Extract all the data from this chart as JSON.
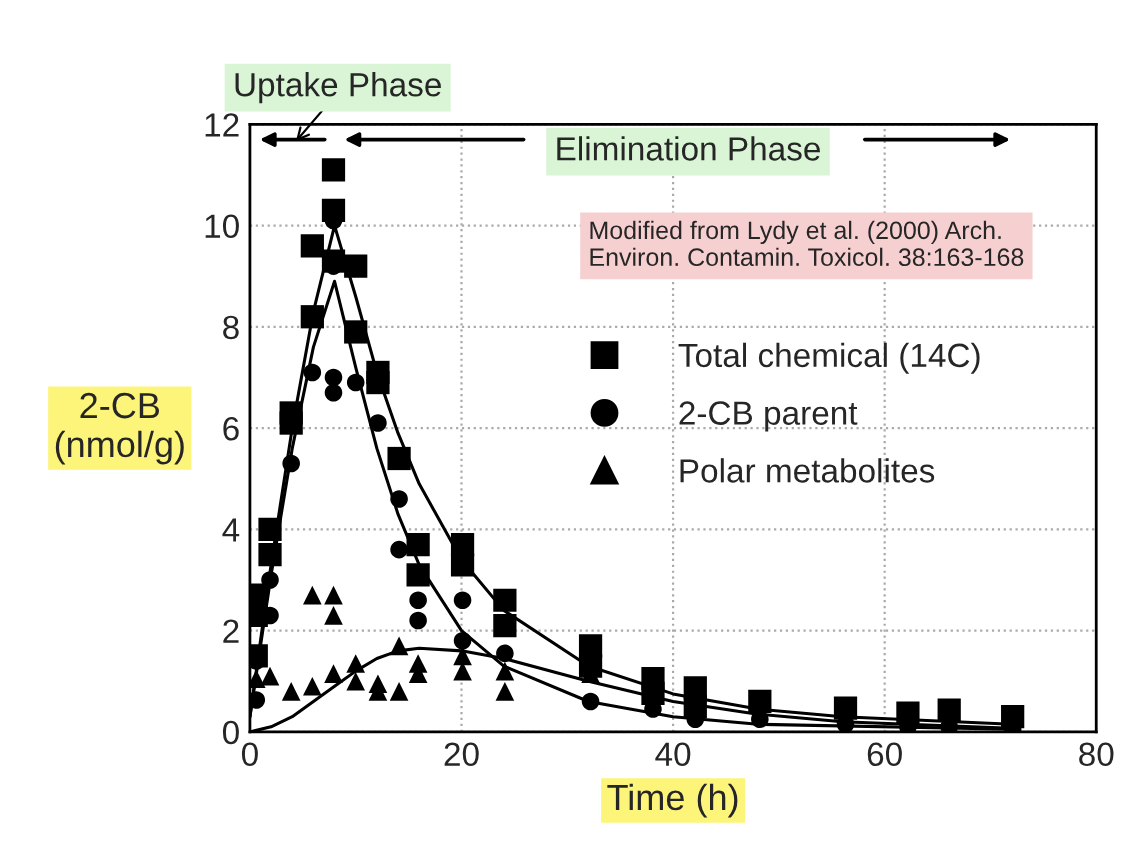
{
  "chart_data": {
    "type": "scatter",
    "xlabel": "Time (h)",
    "ylabel": "2-CB\n(nmol/g)",
    "xlim": [
      0,
      80
    ],
    "xticks": [
      0,
      20,
      40,
      60,
      80
    ],
    "ylim": [
      0,
      12
    ],
    "yticks": [
      0,
      2,
      4,
      6,
      8,
      10,
      12
    ],
    "grid": true,
    "legend": "right",
    "annotations": [
      "Uptake Phase",
      "Elimination Phase",
      "Modified from Lydy et al. (2000) Arch.\nEnviron. Contamin. Toxicol. 38:163-168"
    ],
    "series": [
      {
        "name": "Total chemical (14C)",
        "color": "#000000",
        "marker": "square",
        "x": [
          0.6,
          0.6,
          0.6,
          1.9,
          1.9,
          3.9,
          3.9,
          5.9,
          5.9,
          7.9,
          7.9,
          7.9,
          10,
          10,
          12.1,
          12.1,
          14.1,
          15.9,
          15.9,
          20.1,
          20.1,
          24.1,
          24.1,
          32.2,
          32.2,
          38.1,
          38.1,
          42.1,
          42.1,
          48.2,
          56.3,
          62.2,
          66.1,
          72.1
        ],
        "values": [
          2.7,
          2.3,
          1.5,
          4.0,
          3.5,
          6.3,
          6.1,
          8.2,
          9.6,
          11.1,
          10.3,
          9.3,
          9.2,
          7.9,
          7.1,
          6.9,
          5.4,
          3.7,
          3.1,
          3.7,
          3.3,
          2.6,
          2.1,
          1.7,
          1.3,
          1.05,
          0.76,
          0.87,
          0.5,
          0.6,
          0.47,
          0.37,
          0.43,
          0.3
        ]
      },
      {
        "name": "2-CB parent",
        "color": "#000000",
        "marker": "circle",
        "x": [
          0.6,
          0.6,
          1.9,
          1.9,
          3.9,
          5.9,
          7.9,
          7.9,
          7.9,
          7.9,
          10,
          12.1,
          14.1,
          14.1,
          15.9,
          15.9,
          20.1,
          20.1,
          24.1,
          32.2,
          38.1,
          42.1,
          48.2,
          56.3,
          62.2,
          66.1,
          72.1
        ],
        "values": [
          0.63,
          1.4,
          3.0,
          2.3,
          5.3,
          7.1,
          7.0,
          6.7,
          10.1,
          9.2,
          6.9,
          6.1,
          4.6,
          3.6,
          2.6,
          2.2,
          2.6,
          1.8,
          1.55,
          0.6,
          0.45,
          0.25,
          0.25,
          0.15,
          0.1,
          0.1,
          0.05
        ]
      },
      {
        "name": "Polar metabolites",
        "color": "#000000",
        "marker": "triangle",
        "x": [
          0.6,
          1.9,
          3.9,
          5.9,
          5.9,
          7.9,
          7.9,
          7.9,
          10,
          10,
          12.1,
          12.1,
          14.1,
          14.1,
          15.9,
          15.9,
          20.1,
          20.1,
          24.1,
          24.1,
          32.2
        ],
        "values": [
          1.05,
          1.1,
          0.8,
          0.9,
          2.7,
          2.7,
          2.3,
          1.15,
          1.35,
          1.0,
          0.95,
          0.8,
          0.8,
          1.7,
          1.35,
          1.15,
          1.2,
          1.5,
          1.2,
          0.8,
          1.15
        ]
      },
      {
        "type": "line",
        "color": "#000000",
        "x": [
          0,
          2,
          4,
          6,
          8,
          10,
          12,
          14,
          16,
          20,
          24,
          32,
          40,
          48,
          56,
          72
        ],
        "values": [
          0.3,
          3.3,
          6.0,
          8.3,
          10.0,
          8.6,
          7.1,
          5.9,
          4.9,
          3.4,
          2.4,
          1.3,
          0.75,
          0.45,
          0.3,
          0.15
        ]
      },
      {
        "type": "line",
        "color": "#000000",
        "x": [
          0,
          2,
          4,
          6,
          8,
          10,
          12,
          14,
          16,
          20,
          24,
          32,
          40,
          48,
          72
        ],
        "values": [
          0.3,
          3.1,
          5.6,
          7.6,
          8.9,
          7.2,
          5.6,
          4.3,
          3.3,
          2.0,
          1.3,
          0.6,
          0.3,
          0.15,
          0.05
        ]
      },
      {
        "type": "line",
        "color": "#000000",
        "x": [
          0,
          2,
          4,
          6,
          8,
          10,
          12,
          14,
          16,
          20,
          24,
          32,
          40,
          48,
          56,
          72
        ],
        "values": [
          0,
          0.1,
          0.3,
          0.6,
          0.9,
          1.2,
          1.45,
          1.6,
          1.65,
          1.6,
          1.45,
          1.0,
          0.6,
          0.35,
          0.2,
          0.07
        ]
      }
    ]
  }
}
